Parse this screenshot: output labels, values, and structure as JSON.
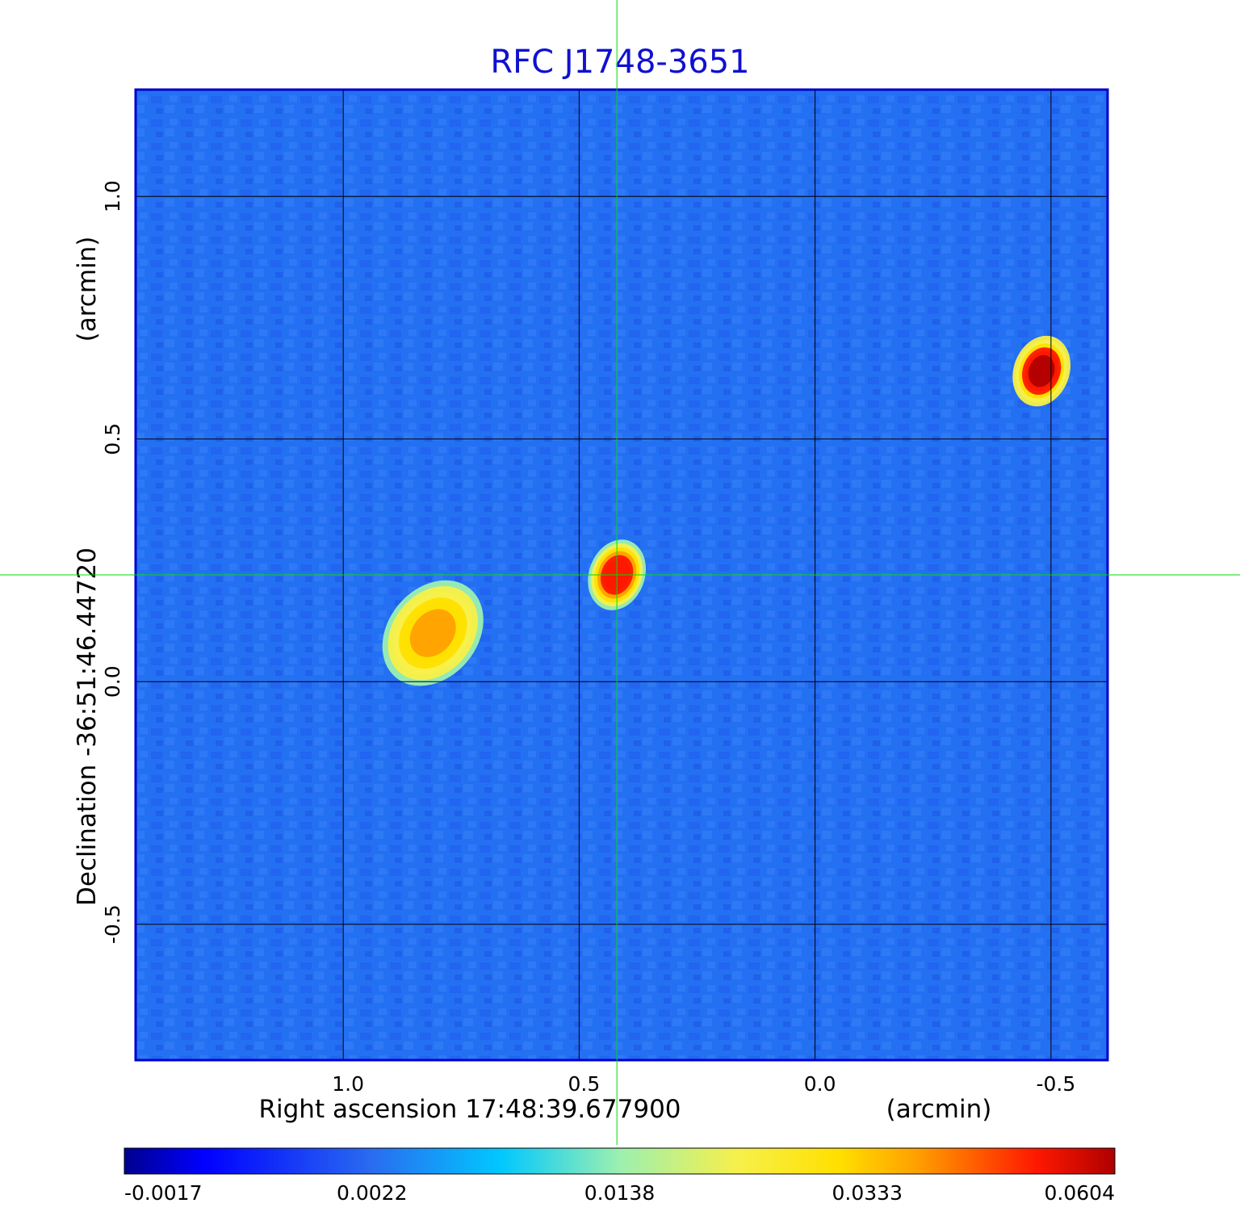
{
  "chart_data": {
    "type": "heatmap",
    "title": "RFC J1748-3651",
    "xlabel": "Right ascension  17:48:39.677900",
    "xlabel_unit": "(arcmin)",
    "ylabel": "Declination  -36:51:46.44720",
    "ylabel_unit": "(arcmin)",
    "x_ticks": [
      "1.0",
      "0.5",
      "0.0",
      "-0.5"
    ],
    "y_ticks": [
      "1.0",
      "0.5",
      "0.0",
      "-0.5"
    ],
    "x_tick_values": [
      1.0,
      0.5,
      0.0,
      -0.5
    ],
    "y_tick_values": [
      1.0,
      0.5,
      0.0,
      -0.5
    ],
    "xlim": [
      1.44,
      -0.62
    ],
    "ylim": [
      -0.78,
      1.22
    ],
    "grid": true,
    "crosshair": {
      "x": 0.42,
      "y": 0.22
    },
    "colorbar": {
      "colormap": "jet",
      "ticks": [
        "-0.0017",
        "0.0022",
        "0.0138",
        "0.0333",
        "0.0604"
      ]
    },
    "sources": [
      {
        "x": 0.81,
        "y": 0.1,
        "peak": 0.04,
        "extent": "extended"
      },
      {
        "x": 0.42,
        "y": 0.22,
        "peak": 0.052,
        "extent": "compact"
      },
      {
        "x": -0.48,
        "y": 0.64,
        "peak": 0.06,
        "extent": "compact"
      }
    ],
    "colors": {
      "title": "#1010d0",
      "frame": "#0000cc",
      "grid": "#000000",
      "crosshair": "#00dd00"
    }
  }
}
